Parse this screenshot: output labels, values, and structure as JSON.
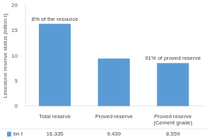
{
  "chart_data": {
    "type": "bar",
    "categories": [
      "Total reserve",
      "Proved reserve",
      "Proved reserve\n(Cement grade)"
    ],
    "series": [
      {
        "name": "bn t",
        "color": "#5B9BD5",
        "values": [
          16.335,
          9.439,
          8.559
        ]
      }
    ],
    "ylabel": "Limestone reserve status (billion t)",
    "ylim": [
      0,
      20
    ],
    "yticks": [
      0,
      5,
      10,
      15,
      20
    ],
    "grid": false,
    "legend": "bottom",
    "data_labels": true,
    "annotations": [
      {
        "text": "8% of the resource",
        "category": "Total reserve"
      },
      {
        "text": "91% of proved reserve",
        "category": "Proved reserve\n(Cement grade)"
      }
    ]
  }
}
